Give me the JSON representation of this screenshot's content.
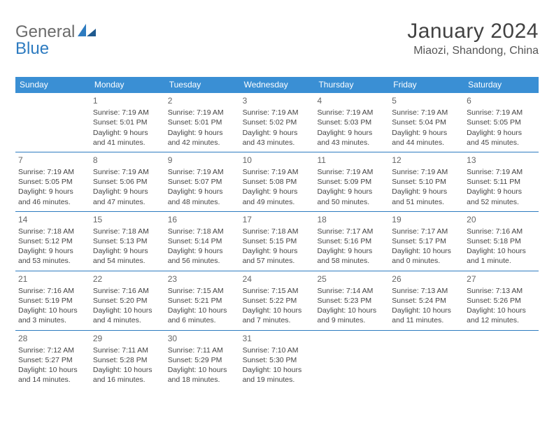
{
  "header": {
    "logo_text_1": "General",
    "logo_text_2": "Blue",
    "month_title": "January 2024",
    "location": "Miaozi, Shandong, China"
  },
  "colors": {
    "header_bar": "#3a8fd4",
    "week_divider": "#2d7bc0",
    "text": "#444444",
    "title": "#424242",
    "logo_gray": "#6b6b6b",
    "logo_blue": "#2d7bc0",
    "background": "#ffffff"
  },
  "calendar": {
    "days_of_week": [
      "Sunday",
      "Monday",
      "Tuesday",
      "Wednesday",
      "Thursday",
      "Friday",
      "Saturday"
    ],
    "weeks": [
      [
        null,
        {
          "n": "1",
          "sr": "Sunrise: 7:19 AM",
          "ss": "Sunset: 5:01 PM",
          "d1": "Daylight: 9 hours",
          "d2": "and 41 minutes."
        },
        {
          "n": "2",
          "sr": "Sunrise: 7:19 AM",
          "ss": "Sunset: 5:01 PM",
          "d1": "Daylight: 9 hours",
          "d2": "and 42 minutes."
        },
        {
          "n": "3",
          "sr": "Sunrise: 7:19 AM",
          "ss": "Sunset: 5:02 PM",
          "d1": "Daylight: 9 hours",
          "d2": "and 43 minutes."
        },
        {
          "n": "4",
          "sr": "Sunrise: 7:19 AM",
          "ss": "Sunset: 5:03 PM",
          "d1": "Daylight: 9 hours",
          "d2": "and 43 minutes."
        },
        {
          "n": "5",
          "sr": "Sunrise: 7:19 AM",
          "ss": "Sunset: 5:04 PM",
          "d1": "Daylight: 9 hours",
          "d2": "and 44 minutes."
        },
        {
          "n": "6",
          "sr": "Sunrise: 7:19 AM",
          "ss": "Sunset: 5:05 PM",
          "d1": "Daylight: 9 hours",
          "d2": "and 45 minutes."
        }
      ],
      [
        {
          "n": "7",
          "sr": "Sunrise: 7:19 AM",
          "ss": "Sunset: 5:05 PM",
          "d1": "Daylight: 9 hours",
          "d2": "and 46 minutes."
        },
        {
          "n": "8",
          "sr": "Sunrise: 7:19 AM",
          "ss": "Sunset: 5:06 PM",
          "d1": "Daylight: 9 hours",
          "d2": "and 47 minutes."
        },
        {
          "n": "9",
          "sr": "Sunrise: 7:19 AM",
          "ss": "Sunset: 5:07 PM",
          "d1": "Daylight: 9 hours",
          "d2": "and 48 minutes."
        },
        {
          "n": "10",
          "sr": "Sunrise: 7:19 AM",
          "ss": "Sunset: 5:08 PM",
          "d1": "Daylight: 9 hours",
          "d2": "and 49 minutes."
        },
        {
          "n": "11",
          "sr": "Sunrise: 7:19 AM",
          "ss": "Sunset: 5:09 PM",
          "d1": "Daylight: 9 hours",
          "d2": "and 50 minutes."
        },
        {
          "n": "12",
          "sr": "Sunrise: 7:19 AM",
          "ss": "Sunset: 5:10 PM",
          "d1": "Daylight: 9 hours",
          "d2": "and 51 minutes."
        },
        {
          "n": "13",
          "sr": "Sunrise: 7:19 AM",
          "ss": "Sunset: 5:11 PM",
          "d1": "Daylight: 9 hours",
          "d2": "and 52 minutes."
        }
      ],
      [
        {
          "n": "14",
          "sr": "Sunrise: 7:18 AM",
          "ss": "Sunset: 5:12 PM",
          "d1": "Daylight: 9 hours",
          "d2": "and 53 minutes."
        },
        {
          "n": "15",
          "sr": "Sunrise: 7:18 AM",
          "ss": "Sunset: 5:13 PM",
          "d1": "Daylight: 9 hours",
          "d2": "and 54 minutes."
        },
        {
          "n": "16",
          "sr": "Sunrise: 7:18 AM",
          "ss": "Sunset: 5:14 PM",
          "d1": "Daylight: 9 hours",
          "d2": "and 56 minutes."
        },
        {
          "n": "17",
          "sr": "Sunrise: 7:18 AM",
          "ss": "Sunset: 5:15 PM",
          "d1": "Daylight: 9 hours",
          "d2": "and 57 minutes."
        },
        {
          "n": "18",
          "sr": "Sunrise: 7:17 AM",
          "ss": "Sunset: 5:16 PM",
          "d1": "Daylight: 9 hours",
          "d2": "and 58 minutes."
        },
        {
          "n": "19",
          "sr": "Sunrise: 7:17 AM",
          "ss": "Sunset: 5:17 PM",
          "d1": "Daylight: 10 hours",
          "d2": "and 0 minutes."
        },
        {
          "n": "20",
          "sr": "Sunrise: 7:16 AM",
          "ss": "Sunset: 5:18 PM",
          "d1": "Daylight: 10 hours",
          "d2": "and 1 minute."
        }
      ],
      [
        {
          "n": "21",
          "sr": "Sunrise: 7:16 AM",
          "ss": "Sunset: 5:19 PM",
          "d1": "Daylight: 10 hours",
          "d2": "and 3 minutes."
        },
        {
          "n": "22",
          "sr": "Sunrise: 7:16 AM",
          "ss": "Sunset: 5:20 PM",
          "d1": "Daylight: 10 hours",
          "d2": "and 4 minutes."
        },
        {
          "n": "23",
          "sr": "Sunrise: 7:15 AM",
          "ss": "Sunset: 5:21 PM",
          "d1": "Daylight: 10 hours",
          "d2": "and 6 minutes."
        },
        {
          "n": "24",
          "sr": "Sunrise: 7:15 AM",
          "ss": "Sunset: 5:22 PM",
          "d1": "Daylight: 10 hours",
          "d2": "and 7 minutes."
        },
        {
          "n": "25",
          "sr": "Sunrise: 7:14 AM",
          "ss": "Sunset: 5:23 PM",
          "d1": "Daylight: 10 hours",
          "d2": "and 9 minutes."
        },
        {
          "n": "26",
          "sr": "Sunrise: 7:13 AM",
          "ss": "Sunset: 5:24 PM",
          "d1": "Daylight: 10 hours",
          "d2": "and 11 minutes."
        },
        {
          "n": "27",
          "sr": "Sunrise: 7:13 AM",
          "ss": "Sunset: 5:26 PM",
          "d1": "Daylight: 10 hours",
          "d2": "and 12 minutes."
        }
      ],
      [
        {
          "n": "28",
          "sr": "Sunrise: 7:12 AM",
          "ss": "Sunset: 5:27 PM",
          "d1": "Daylight: 10 hours",
          "d2": "and 14 minutes."
        },
        {
          "n": "29",
          "sr": "Sunrise: 7:11 AM",
          "ss": "Sunset: 5:28 PM",
          "d1": "Daylight: 10 hours",
          "d2": "and 16 minutes."
        },
        {
          "n": "30",
          "sr": "Sunrise: 7:11 AM",
          "ss": "Sunset: 5:29 PM",
          "d1": "Daylight: 10 hours",
          "d2": "and 18 minutes."
        },
        {
          "n": "31",
          "sr": "Sunrise: 7:10 AM",
          "ss": "Sunset: 5:30 PM",
          "d1": "Daylight: 10 hours",
          "d2": "and 19 minutes."
        },
        null,
        null,
        null
      ]
    ]
  }
}
